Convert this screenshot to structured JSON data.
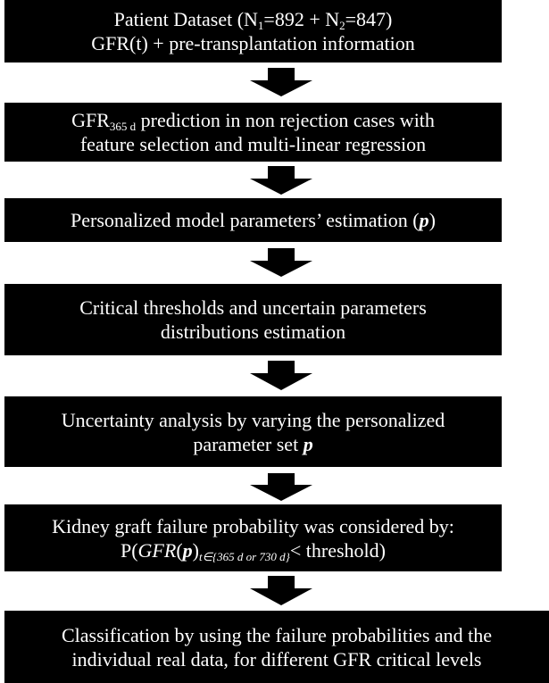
{
  "nodes": [
    {
      "lines": [
        [
          "Patient Dataset (N",
          "1",
          "=892 + N",
          "2",
          "=847)"
        ],
        [
          "GFR(t) + pre-transplantation information"
        ]
      ]
    },
    {
      "lines": [
        [
          "GFR",
          "365 d",
          " prediction in non rejection cases with"
        ],
        [
          "feature selection and multi-linear regression"
        ]
      ]
    },
    {
      "lines": [
        [
          "Personalized model parameters’ estimation (",
          "p",
          ")"
        ]
      ]
    },
    {
      "lines": [
        [
          "Critical thresholds and uncertain parameters"
        ],
        [
          "distributions estimation"
        ]
      ]
    },
    {
      "lines": [
        [
          "Uncertainty analysis by varying the personalized"
        ],
        [
          "parameter set ",
          "p"
        ]
      ]
    },
    {
      "lines": [
        [
          "Kidney graft failure probability was considered by:"
        ],
        [
          "P(",
          "GFR",
          "(",
          "p",
          ")",
          "t∈{365 d or 730 d}",
          "< threshold)"
        ]
      ]
    },
    {
      "lines": [
        [
          "Classification by using the failure probabilities and the"
        ],
        [
          "individual real data, for different GFR critical levels"
        ]
      ]
    }
  ]
}
